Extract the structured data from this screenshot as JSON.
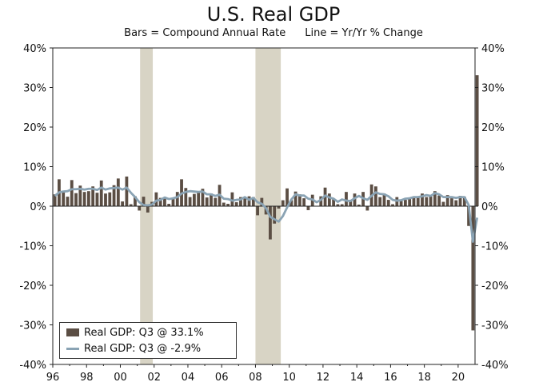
{
  "chart_data": {
    "type": "bar",
    "title": "U.S. Real GDP",
    "subtitle_bars": "Bars = Compound Annual Rate",
    "subtitle_line": "Line = Yr/Yr % Change",
    "ylim": [
      -40,
      40
    ],
    "y_ticks": [
      "40%",
      "30%",
      "20%",
      "10%",
      "0%",
      "-10%",
      "-20%",
      "-30%",
      "-40%"
    ],
    "x_ticks": [
      "96",
      "98",
      "00",
      "02",
      "04",
      "06",
      "08",
      "10",
      "12",
      "14",
      "16",
      "18",
      "20"
    ],
    "x_tick_years": [
      1996,
      1998,
      2000,
      2002,
      2004,
      2006,
      2008,
      2010,
      2012,
      2014,
      2016,
      2018,
      2020
    ],
    "x_range": [
      1996.0,
      2021.0
    ],
    "recessions": [
      [
        2001.17,
        2001.92
      ],
      [
        2008.0,
        2009.5
      ]
    ],
    "colors": {
      "bars": "#5b4e44",
      "line": "#8aa3b4",
      "recession": "#d8d4c5"
    },
    "series": [
      {
        "name": "Real GDP: Q3 @ 33.1%",
        "kind": "bar",
        "start": 1996.0,
        "values": [
          3.0,
          6.8,
          3.6,
          2.4,
          6.6,
          3.3,
          5.2,
          3.6,
          3.8,
          5.0,
          3.4,
          6.5,
          3.2,
          3.5,
          5.3,
          7.0,
          1.2,
          7.5,
          0.5,
          2.5,
          -1.1,
          2.4,
          -1.6,
          1.1,
          3.5,
          2.1,
          2.0,
          0.6,
          2.1,
          3.6,
          6.8,
          4.6,
          2.3,
          3.1,
          3.8,
          4.4,
          2.2,
          3.2,
          2.1,
          5.4,
          0.9,
          0.6,
          3.5,
          1.0,
          2.3,
          2.2,
          2.5,
          2.3,
          -2.3,
          2.1,
          -2.1,
          -8.4,
          -4.4,
          -0.6,
          1.5,
          4.5,
          1.5,
          3.7,
          3.0,
          2.0,
          -1.0,
          2.9,
          -0.1,
          2.5,
          4.7,
          3.2,
          1.7,
          0.5,
          0.5,
          3.6,
          1.5,
          3.2,
          0.4,
          3.6,
          -1.1,
          5.5,
          5.0,
          2.3,
          3.2,
          1.6,
          0.5,
          2.3,
          1.3,
          1.6,
          2.0,
          2.3,
          2.2,
          3.2,
          2.3,
          2.5,
          3.8,
          2.7,
          1.1,
          2.8,
          2.0,
          1.5,
          2.6,
          2.4,
          -5.0,
          -31.4,
          33.1
        ]
      },
      {
        "name": "Real GDP: Q3 @ -2.9%",
        "kind": "line",
        "start": 1996.0,
        "values": [
          2.6,
          3.5,
          3.7,
          3.8,
          4.3,
          4.3,
          4.4,
          4.2,
          4.4,
          4.4,
          4.1,
          4.7,
          4.2,
          4.5,
          4.6,
          4.7,
          4.2,
          4.7,
          3.4,
          2.3,
          1.0,
          0.3,
          0.2,
          0.4,
          1.4,
          1.6,
          2.2,
          1.8,
          2.0,
          2.3,
          3.2,
          3.6,
          3.8,
          3.7,
          3.6,
          3.7,
          3.0,
          3.0,
          2.6,
          2.9,
          1.9,
          1.8,
          1.4,
          1.6,
          1.7,
          2.3,
          1.6,
          2.1,
          1.0,
          0.6,
          -0.5,
          -2.7,
          -3.3,
          -3.9,
          -2.5,
          -0.3,
          1.7,
          3.0,
          2.7,
          2.7,
          1.9,
          1.7,
          1.0,
          1.6,
          2.7,
          2.2,
          1.9,
          1.1,
          1.7,
          1.4,
          1.3,
          2.0,
          2.6,
          2.0,
          1.6,
          2.6,
          3.5,
          3.1,
          3.0,
          2.5,
          1.6,
          1.4,
          1.5,
          1.9,
          2.0,
          2.3,
          2.3,
          2.5,
          2.8,
          2.6,
          3.3,
          3.0,
          2.3,
          2.3,
          2.3,
          2.1,
          2.3,
          2.3,
          0.3,
          -9.0,
          -2.9
        ]
      }
    ],
    "legend": [
      {
        "label": "Real GDP: Q3 @ 33.1%",
        "kind": "bar"
      },
      {
        "label": "Real GDP: Q3 @ -2.9%",
        "kind": "line"
      }
    ]
  }
}
